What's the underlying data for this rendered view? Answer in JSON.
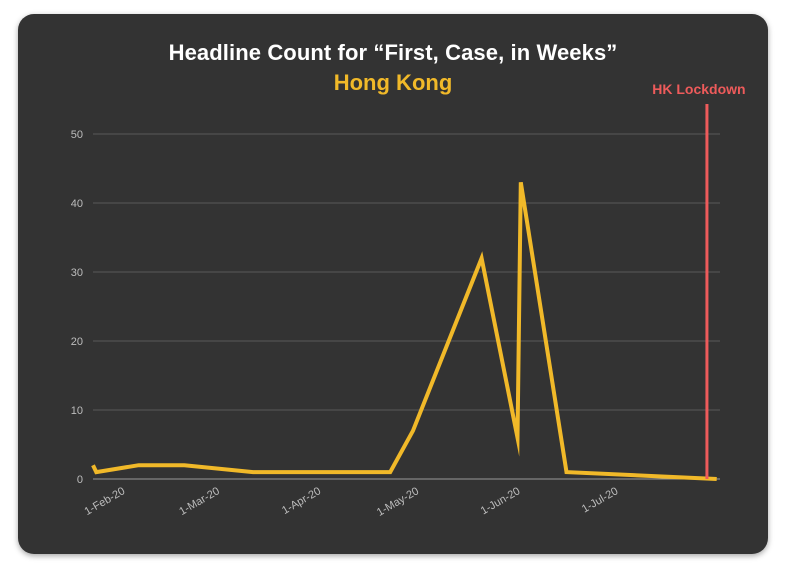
{
  "chart_data": {
    "type": "line",
    "title": "Headline Count for “First, Case, in Weeks”",
    "subtitle": "Hong Kong",
    "xlabel": "",
    "ylabel": "",
    "ylim": [
      0,
      50
    ],
    "yticks": [
      0,
      10,
      20,
      30,
      40,
      50
    ],
    "xticks": [
      {
        "date": "2020-02-01",
        "label": "1-Feb-20"
      },
      {
        "date": "2020-03-01",
        "label": "1-Mar-20"
      },
      {
        "date": "2020-04-01",
        "label": "1-Apr-20"
      },
      {
        "date": "2020-05-01",
        "label": "1-May-20"
      },
      {
        "date": "2020-06-01",
        "label": "1-Jun-20"
      },
      {
        "date": "2020-07-01",
        "label": "1-Jul-20"
      }
    ],
    "xlim": [
      "2020-01-22",
      "2020-08-01"
    ],
    "grid": true,
    "series": [
      {
        "color": "#f1b929",
        "points": [
          {
            "x": "2020-01-22",
            "y": 2
          },
          {
            "x": "2020-01-23",
            "y": 1
          },
          {
            "x": "2020-02-05",
            "y": 2
          },
          {
            "x": "2020-02-19",
            "y": 2
          },
          {
            "x": "2020-03-11",
            "y": 1
          },
          {
            "x": "2020-04-22",
            "y": 1
          },
          {
            "x": "2020-04-29",
            "y": 7
          },
          {
            "x": "2020-05-20",
            "y": 32
          },
          {
            "x": "2020-05-31",
            "y": 6
          },
          {
            "x": "2020-06-01",
            "y": 43
          },
          {
            "x": "2020-06-15",
            "y": 1
          },
          {
            "x": "2020-07-31",
            "y": 0
          }
        ]
      }
    ],
    "annotations": [
      {
        "type": "vline",
        "x": "2020-07-28",
        "label": "HK Lockdown",
        "color": "#ee5b5b"
      }
    ]
  }
}
